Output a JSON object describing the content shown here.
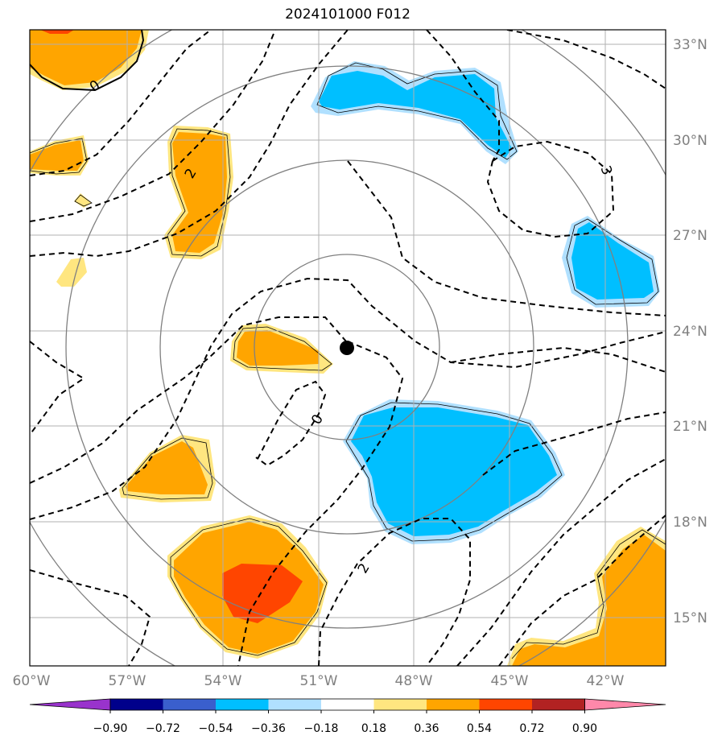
{
  "title": "2024101000 F012",
  "lat_labels": [
    "33°N",
    "30°N",
    "27°N",
    "24°N",
    "21°N",
    "18°N",
    "15°N"
  ],
  "lon_labels": [
    "60°W",
    "57°W",
    "54°W",
    "51°W",
    "48°W",
    "45°W",
    "42°W"
  ],
  "colorbar": {
    "ticks": [
      "−0.90",
      "−0.72",
      "−0.54",
      "−0.36",
      "−0.18",
      "0.18",
      "0.36",
      "0.54",
      "0.72",
      "0.90"
    ],
    "colors": [
      "#9933cc",
      "#00008b",
      "#3a5fcd",
      "#00bfff",
      "#b0e0ff",
      "#ffffff",
      "#ffe680",
      "#ffa500",
      "#ff4500",
      "#b22222",
      "#ff88aa"
    ]
  },
  "contour_labels": [
    "0",
    "2",
    "3",
    "0",
    "2"
  ],
  "colors": {
    "orange": "#ffa500",
    "light_yellow": "#ffe680",
    "red_orange": "#ff4500",
    "deep_sky_blue": "#00bfff",
    "light_blue": "#b0e0ff",
    "gray": "#808080"
  },
  "center_marker": {
    "lon": -49.8,
    "lat": 23.45
  },
  "range_rings_deg": [
    1,
    2,
    3,
    4
  ]
}
